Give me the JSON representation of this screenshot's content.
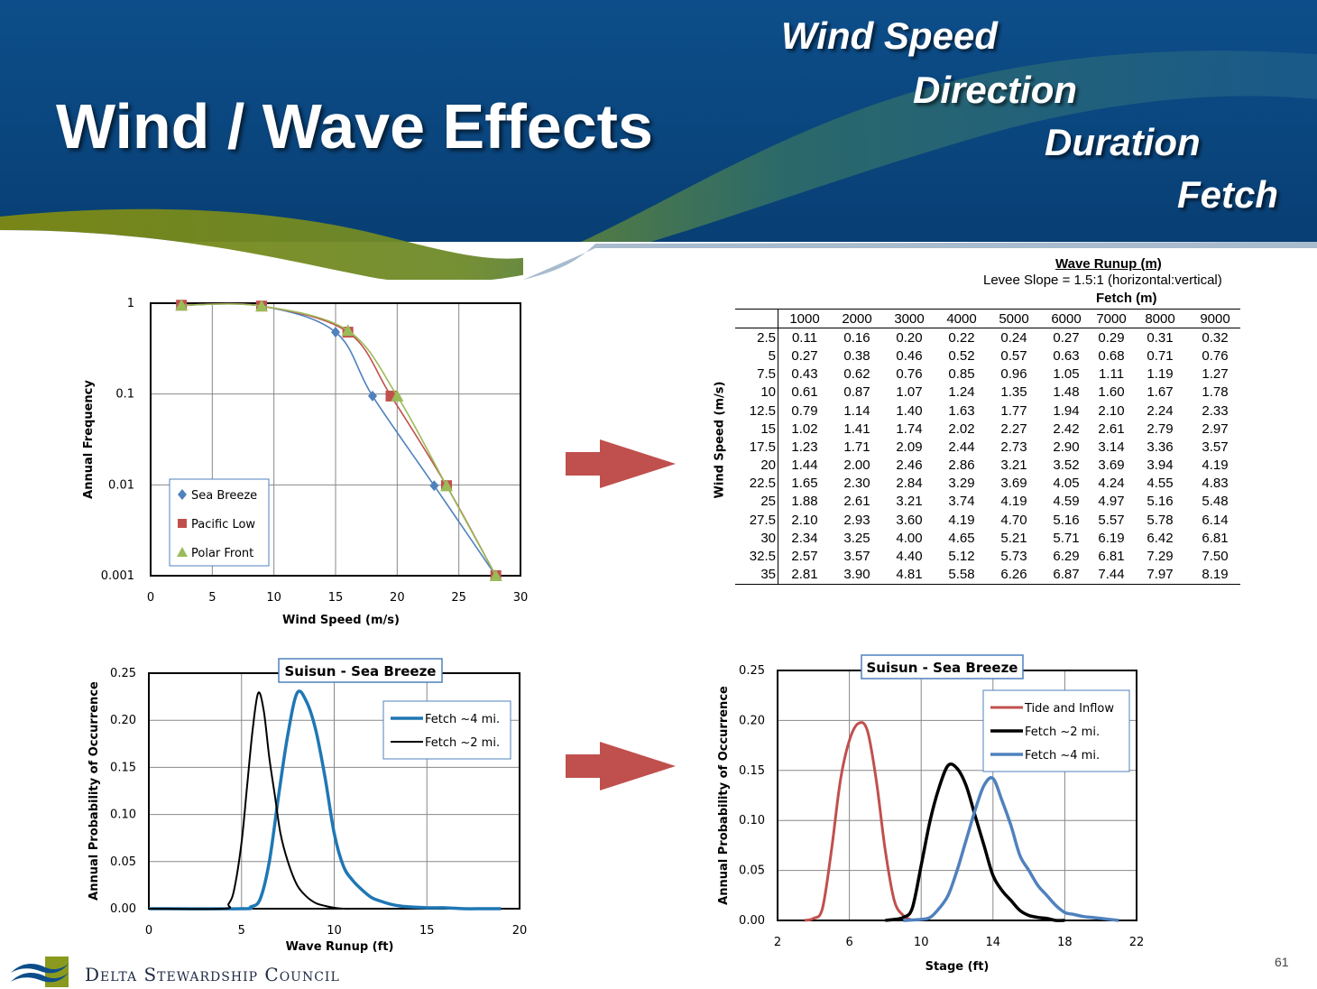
{
  "slide": {
    "title": "Wind / Wave Effects",
    "keywords": [
      "Wind Speed",
      "Direction",
      "Duration",
      "Fetch"
    ],
    "footer_org": "Delta Stewardship Council",
    "page_number": "61",
    "colors": {
      "banner_blue": "#0b4a86",
      "banner_green": "#7a8a1a",
      "arrow_red": "#c0504d"
    }
  },
  "runup_table": {
    "title": "Wave Runup (m)",
    "subtitle": "Levee Slope = 1.5:1 (horizontal:vertical)",
    "fetch_label": "Fetch (m)",
    "row_label": "Wind Speed (m/s)",
    "columns": [
      "1000",
      "2000",
      "3000",
      "4000",
      "5000",
      "6000",
      "7000",
      "8000",
      "9000"
    ],
    "rows": [
      {
        "ws": "2.5",
        "v": [
          "0.11",
          "0.16",
          "0.20",
          "0.22",
          "0.24",
          "0.27",
          "0.29",
          "0.31",
          "0.32"
        ]
      },
      {
        "ws": "5",
        "v": [
          "0.27",
          "0.38",
          "0.46",
          "0.52",
          "0.57",
          "0.63",
          "0.68",
          "0.71",
          "0.76"
        ]
      },
      {
        "ws": "7.5",
        "v": [
          "0.43",
          "0.62",
          "0.76",
          "0.85",
          "0.96",
          "1.05",
          "1.11",
          "1.19",
          "1.27"
        ]
      },
      {
        "ws": "10",
        "v": [
          "0.61",
          "0.87",
          "1.07",
          "1.24",
          "1.35",
          "1.48",
          "1.60",
          "1.67",
          "1.78"
        ]
      },
      {
        "ws": "12.5",
        "v": [
          "0.79",
          "1.14",
          "1.40",
          "1.63",
          "1.77",
          "1.94",
          "2.10",
          "2.24",
          "2.33"
        ]
      },
      {
        "ws": "15",
        "v": [
          "1.02",
          "1.41",
          "1.74",
          "2.02",
          "2.27",
          "2.42",
          "2.61",
          "2.79",
          "2.97"
        ]
      },
      {
        "ws": "17.5",
        "v": [
          "1.23",
          "1.71",
          "2.09",
          "2.44",
          "2.73",
          "2.90",
          "3.14",
          "3.36",
          "3.57"
        ]
      },
      {
        "ws": "20",
        "v": [
          "1.44",
          "2.00",
          "2.46",
          "2.86",
          "3.21",
          "3.52",
          "3.69",
          "3.94",
          "4.19"
        ]
      },
      {
        "ws": "22.5",
        "v": [
          "1.65",
          "2.30",
          "2.84",
          "3.29",
          "3.69",
          "4.05",
          "4.24",
          "4.55",
          "4.83"
        ]
      },
      {
        "ws": "25",
        "v": [
          "1.88",
          "2.61",
          "3.21",
          "3.74",
          "4.19",
          "4.59",
          "4.97",
          "5.16",
          "5.48"
        ]
      },
      {
        "ws": "27.5",
        "v": [
          "2.10",
          "2.93",
          "3.60",
          "4.19",
          "4.70",
          "5.16",
          "5.57",
          "5.78",
          "6.14"
        ]
      },
      {
        "ws": "30",
        "v": [
          "2.34",
          "3.25",
          "4.00",
          "4.65",
          "5.21",
          "5.71",
          "6.19",
          "6.42",
          "6.81"
        ]
      },
      {
        "ws": "32.5",
        "v": [
          "2.57",
          "3.57",
          "4.40",
          "5.12",
          "5.73",
          "6.29",
          "6.81",
          "7.29",
          "7.50"
        ]
      },
      {
        "ws": "35",
        "v": [
          "2.81",
          "3.90",
          "4.81",
          "5.58",
          "6.26",
          "6.87",
          "7.44",
          "7.97",
          "8.19"
        ]
      }
    ]
  },
  "chart_data": [
    {
      "type": "scatter",
      "xlabel": "Wind Speed (m/s)",
      "ylabel": "Annual Frequency",
      "xlim": [
        0,
        30
      ],
      "ylim": [
        0.001,
        1
      ],
      "yscale": "log",
      "xticks": [
        "0",
        "5",
        "10",
        "15",
        "20",
        "25",
        "30"
      ],
      "yticks": [
        "0.001",
        "0.01",
        "0.1",
        "1"
      ],
      "legend_position": "bottom-left",
      "grid": true,
      "series": [
        {
          "name": "Sea Breeze",
          "color": "#4f81bd",
          "marker": "diamond",
          "x": [
            2.5,
            9,
            15,
            18,
            23,
            28
          ],
          "y": [
            0.95,
            0.93,
            0.48,
            0.095,
            0.0098,
            0.001
          ]
        },
        {
          "name": "Pacific Low",
          "color": "#c0504d",
          "marker": "square",
          "x": [
            2.5,
            9,
            16,
            19.5,
            24,
            28
          ],
          "y": [
            0.95,
            0.93,
            0.48,
            0.095,
            0.0098,
            0.001
          ]
        },
        {
          "name": "Polar Front",
          "color": "#9bbb59",
          "marker": "triangle",
          "x": [
            2.5,
            9,
            16,
            20,
            24,
            28
          ],
          "y": [
            0.95,
            0.93,
            0.5,
            0.095,
            0.0098,
            0.001
          ]
        }
      ]
    },
    {
      "type": "line",
      "title": "Suisun - Sea Breeze",
      "xlabel": "Wave Runup (ft)",
      "ylabel": "Annual Probability of Occurrence",
      "xlim": [
        0,
        20
      ],
      "ylim": [
        0,
        0.25
      ],
      "xticks": [
        "0",
        "5",
        "10",
        "15",
        "20"
      ],
      "yticks": [
        "0.00",
        "0.05",
        "0.10",
        "0.15",
        "0.20",
        "0.25"
      ],
      "legend_position": "top-right",
      "grid": true,
      "series": [
        {
          "name": "Fetch ~4 mi.",
          "color": "#1f77b4",
          "width": 3.5,
          "x": [
            0,
            5,
            5.5,
            6,
            6.5,
            7,
            7.5,
            8,
            8.5,
            9,
            9.5,
            10,
            10.5,
            11,
            11.5,
            12,
            12.5,
            13,
            13.5,
            14,
            15,
            16,
            17,
            18,
            19
          ],
          "y": [
            0,
            0,
            0.002,
            0.01,
            0.05,
            0.12,
            0.185,
            0.229,
            0.22,
            0.19,
            0.14,
            0.08,
            0.045,
            0.03,
            0.02,
            0.012,
            0.008,
            0.005,
            0.003,
            0.002,
            0.001,
            0.001,
            0,
            0,
            0
          ]
        },
        {
          "name": "Fetch ~2 mi.",
          "color": "#000000",
          "width": 2,
          "x": [
            0,
            4,
            4.3,
            4.6,
            5,
            5.3,
            5.6,
            5.9,
            6.2,
            6.5,
            6.8,
            7.1,
            7.5,
            8,
            8.5,
            9,
            9.5,
            10,
            10.5,
            11
          ],
          "y": [
            0,
            0,
            0.005,
            0.02,
            0.07,
            0.13,
            0.19,
            0.229,
            0.21,
            0.16,
            0.12,
            0.08,
            0.05,
            0.025,
            0.013,
            0.006,
            0.003,
            0.001,
            0,
            0
          ]
        }
      ]
    },
    {
      "type": "line",
      "title": "Suisun - Sea Breeze",
      "xlabel": "Stage (ft)",
      "ylabel": "Annual Probability of Occurrence",
      "xlim": [
        2,
        22
      ],
      "ylim": [
        0,
        0.25
      ],
      "xticks": [
        "2",
        "6",
        "10",
        "14",
        "18",
        "22"
      ],
      "yticks": [
        "0.00",
        "0.05",
        "0.10",
        "0.15",
        "0.20",
        "0.25"
      ],
      "legend_position": "top-right",
      "grid": true,
      "series": [
        {
          "name": "Tide and Inflow",
          "color": "#c0504d",
          "width": 3,
          "x": [
            3.5,
            4,
            4.5,
            5,
            5.5,
            6,
            6.5,
            7,
            7.5,
            8,
            8.5,
            9,
            9.5
          ],
          "y": [
            0,
            0.002,
            0.012,
            0.07,
            0.14,
            0.18,
            0.197,
            0.19,
            0.14,
            0.07,
            0.02,
            0.005,
            0
          ]
        },
        {
          "name": "Fetch ~2 mi.",
          "color": "#000000",
          "width": 3.5,
          "x": [
            8,
            8.5,
            9,
            9.5,
            10,
            10.5,
            11,
            11.5,
            12,
            12.5,
            13,
            13.5,
            14,
            14.5,
            15,
            15.5,
            16,
            16.5,
            17,
            17.5,
            18
          ],
          "y": [
            0,
            0.001,
            0.003,
            0.012,
            0.055,
            0.1,
            0.133,
            0.155,
            0.152,
            0.135,
            0.105,
            0.075,
            0.045,
            0.03,
            0.02,
            0.01,
            0.005,
            0.003,
            0.002,
            0,
            0
          ]
        },
        {
          "name": "Fetch ~4 mi.",
          "color": "#4f81bd",
          "width": 3.5,
          "x": [
            9,
            10,
            10.5,
            11,
            11.5,
            12,
            12.5,
            13,
            13.5,
            14,
            14.5,
            15,
            15.5,
            16,
            16.5,
            17,
            17.5,
            18,
            18.5,
            19,
            19.5,
            20,
            21
          ],
          "y": [
            0,
            0.001,
            0.003,
            0.012,
            0.025,
            0.05,
            0.08,
            0.11,
            0.135,
            0.142,
            0.12,
            0.095,
            0.065,
            0.05,
            0.035,
            0.025,
            0.015,
            0.008,
            0.006,
            0.004,
            0.003,
            0.002,
            0
          ]
        }
      ]
    }
  ]
}
